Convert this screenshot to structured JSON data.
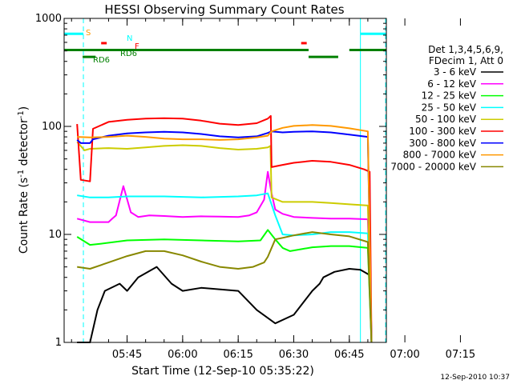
{
  "chart_data": {
    "type": "line",
    "title": "HESSI Observing Summary Count Rates",
    "xlabel": "Start Time (12-Sep-10 05:35:22)",
    "ylabel_main": "Count Rate (s",
    "ylabel_sup1": "-1",
    "ylabel_mid": " detector",
    "ylabel_sup2": "-1",
    "ylabel_end": ")",
    "ylog": true,
    "ylim": [
      1,
      1000
    ],
    "xlim_min": [
      -7,
      80
    ],
    "xticks": [
      {
        "m": 10,
        "label": "05:45"
      },
      {
        "m": 25,
        "label": "06:00"
      },
      {
        "m": 40,
        "label": "06:15"
      },
      {
        "m": 55,
        "label": "06:30"
      },
      {
        "m": 70,
        "label": "06:45"
      },
      {
        "m": 85,
        "label": "07:00"
      },
      {
        "m": 100,
        "label": "07:15"
      }
    ],
    "yticks": [
      {
        "v": 1,
        "label": "1"
      },
      {
        "v": 10,
        "label": "10"
      },
      {
        "v": 100,
        "label": "100"
      },
      {
        "v": 1000,
        "label": "1000"
      }
    ],
    "legend_header": [
      "Det 1,3,4,5,6,9,",
      "FDecim 1, Att 0"
    ],
    "footer_date": "12-Sep-2010 10:37",
    "series": [
      {
        "name": "3 - 6 keV",
        "color": "#000000",
        "points": [
          [
            -3.5,
            1.0
          ],
          [
            0,
            1.0
          ],
          [
            2,
            2.0
          ],
          [
            4,
            3.0
          ],
          [
            8,
            3.5
          ],
          [
            10,
            3.0
          ],
          [
            13,
            4.0
          ],
          [
            18,
            5.0
          ],
          [
            22,
            3.5
          ],
          [
            25,
            3.0
          ],
          [
            30,
            3.2
          ],
          [
            40,
            3.0
          ],
          [
            45,
            2.0
          ],
          [
            50,
            1.5
          ],
          [
            55,
            1.8
          ],
          [
            60,
            3.0
          ],
          [
            62,
            3.5
          ],
          [
            63,
            4.0
          ],
          [
            66,
            4.5
          ],
          [
            70,
            4.8
          ],
          [
            73,
            4.7
          ],
          [
            75.5,
            4.2
          ],
          [
            76,
            1.0
          ]
        ]
      },
      {
        "name": "6 - 12 keV",
        "color": "#ff00ff",
        "points": [
          [
            -3.5,
            14.0
          ],
          [
            0,
            13.0
          ],
          [
            5,
            13.0
          ],
          [
            6,
            14.0
          ],
          [
            7,
            15.0
          ],
          [
            9,
            28.0
          ],
          [
            11,
            16.0
          ],
          [
            13,
            14.5
          ],
          [
            16,
            15.0
          ],
          [
            20,
            14.8
          ],
          [
            25,
            14.5
          ],
          [
            30,
            14.7
          ],
          [
            35,
            14.6
          ],
          [
            40,
            14.5
          ],
          [
            43,
            15.0
          ],
          [
            45,
            16.0
          ],
          [
            47,
            21.0
          ],
          [
            48,
            38.0
          ],
          [
            49,
            24.0
          ],
          [
            50,
            17.0
          ],
          [
            52,
            15.5
          ],
          [
            55,
            14.5
          ],
          [
            60,
            14.2
          ],
          [
            65,
            14.0
          ],
          [
            70,
            14.0
          ],
          [
            75,
            13.8
          ],
          [
            76,
            1.0
          ]
        ]
      },
      {
        "name": "12 - 25 keV",
        "color": "#00ff00",
        "points": [
          [
            -3.5,
            9.5
          ],
          [
            0,
            8.0
          ],
          [
            3,
            8.2
          ],
          [
            10,
            8.8
          ],
          [
            20,
            9.0
          ],
          [
            30,
            8.8
          ],
          [
            40,
            8.6
          ],
          [
            46,
            8.8
          ],
          [
            48,
            11.0
          ],
          [
            50,
            9.0
          ],
          [
            52,
            7.5
          ],
          [
            54,
            7.0
          ],
          [
            57,
            7.3
          ],
          [
            60,
            7.6
          ],
          [
            65,
            7.8
          ],
          [
            70,
            7.8
          ],
          [
            75,
            7.5
          ],
          [
            76,
            1.0
          ]
        ]
      },
      {
        "name": "25 - 50 keV",
        "color": "#00ffff",
        "points": [
          [
            -3.5,
            23.0
          ],
          [
            0,
            22.0
          ],
          [
            5,
            22.0
          ],
          [
            10,
            22.5
          ],
          [
            20,
            22.5
          ],
          [
            30,
            22.0
          ],
          [
            40,
            22.5
          ],
          [
            45,
            23.0
          ],
          [
            48,
            24.0
          ],
          [
            50,
            15.0
          ],
          [
            52,
            10.0
          ],
          [
            55,
            9.8
          ],
          [
            60,
            10.0
          ],
          [
            65,
            10.5
          ],
          [
            70,
            10.5
          ],
          [
            75,
            10.2
          ],
          [
            76,
            1.0
          ]
        ]
      },
      {
        "name": "50 - 100 keV",
        "color": "#cccc00",
        "points": [
          [
            -3.5,
            72.0
          ],
          [
            -1.5,
            60.0
          ],
          [
            0,
            62.0
          ],
          [
            5,
            63.0
          ],
          [
            10,
            62.0
          ],
          [
            15,
            64.0
          ],
          [
            20,
            66.0
          ],
          [
            25,
            67.0
          ],
          [
            30,
            66.0
          ],
          [
            35,
            63.0
          ],
          [
            40,
            61.0
          ],
          [
            45,
            62.0
          ],
          [
            48,
            64.0
          ],
          [
            48.7,
            66.0
          ],
          [
            49,
            22.0
          ],
          [
            52,
            20.0
          ],
          [
            55,
            20.0
          ],
          [
            60,
            20.0
          ],
          [
            65,
            19.5
          ],
          [
            70,
            19.0
          ],
          [
            75,
            18.5
          ],
          [
            76,
            1.0
          ]
        ]
      },
      {
        "name": "100 - 300 keV",
        "color": "#ff0000",
        "points": [
          [
            -3.5,
            105.0
          ],
          [
            -2.5,
            32.0
          ],
          [
            0,
            31.0
          ],
          [
            0.8,
            95.0
          ],
          [
            5,
            110.0
          ],
          [
            10,
            115.0
          ],
          [
            15,
            118.0
          ],
          [
            20,
            119.0
          ],
          [
            25,
            118.0
          ],
          [
            30,
            113.0
          ],
          [
            35,
            106.0
          ],
          [
            40,
            103.0
          ],
          [
            45,
            107.0
          ],
          [
            48,
            118.0
          ],
          [
            48.8,
            125.0
          ],
          [
            49,
            42.0
          ],
          [
            52,
            44.0
          ],
          [
            55,
            46.0
          ],
          [
            60,
            48.0
          ],
          [
            65,
            47.0
          ],
          [
            70,
            44.0
          ],
          [
            74,
            40.0
          ],
          [
            75.5,
            38.0
          ],
          [
            76,
            1.0
          ]
        ]
      },
      {
        "name": "300 - 800 keV",
        "color": "#0000ff",
        "points": [
          [
            -3.5,
            75.0
          ],
          [
            -2.5,
            70.0
          ],
          [
            0,
            70.0
          ],
          [
            0.8,
            76.0
          ],
          [
            5,
            82.0
          ],
          [
            10,
            86.0
          ],
          [
            15,
            88.0
          ],
          [
            20,
            89.0
          ],
          [
            25,
            88.0
          ],
          [
            30,
            85.0
          ],
          [
            35,
            81.0
          ],
          [
            40,
            79.0
          ],
          [
            45,
            81.0
          ],
          [
            48,
            87.0
          ],
          [
            49,
            90.0
          ],
          [
            52,
            88.0
          ],
          [
            55,
            89.0
          ],
          [
            60,
            90.0
          ],
          [
            65,
            88.0
          ],
          [
            70,
            84.0
          ],
          [
            75,
            80.0
          ],
          [
            76,
            1.0
          ]
        ]
      },
      {
        "name": "800 - 7000 keV",
        "color": "#ff9900",
        "points": [
          [
            -3.5,
            80.0
          ],
          [
            0,
            79.0
          ],
          [
            5,
            80.0
          ],
          [
            10,
            82.0
          ],
          [
            15,
            80.0
          ],
          [
            20,
            77.0
          ],
          [
            25,
            76.0
          ],
          [
            30,
            76.0
          ],
          [
            35,
            75.0
          ],
          [
            40,
            76.0
          ],
          [
            45,
            79.0
          ],
          [
            48,
            82.0
          ],
          [
            49,
            90.0
          ],
          [
            52,
            97.0
          ],
          [
            55,
            101.0
          ],
          [
            60,
            103.0
          ],
          [
            65,
            101.0
          ],
          [
            70,
            96.0
          ],
          [
            75,
            90.0
          ],
          [
            76,
            1.0
          ]
        ]
      },
      {
        "name": "7000 - 20000 keV",
        "color": "#888800",
        "points": [
          [
            -3.5,
            5.0
          ],
          [
            0,
            4.8
          ],
          [
            5,
            5.5
          ],
          [
            10,
            6.3
          ],
          [
            15,
            7.0
          ],
          [
            20,
            7.0
          ],
          [
            25,
            6.4
          ],
          [
            30,
            5.6
          ],
          [
            35,
            5.0
          ],
          [
            40,
            4.8
          ],
          [
            44,
            5.0
          ],
          [
            47,
            5.5
          ],
          [
            48,
            6.2
          ],
          [
            50,
            9.0
          ],
          [
            52,
            9.3
          ],
          [
            55,
            9.8
          ],
          [
            60,
            10.5
          ],
          [
            65,
            10.0
          ],
          [
            70,
            9.6
          ],
          [
            75,
            8.5
          ],
          [
            76,
            1.0
          ]
        ]
      }
    ],
    "vertical_markers": [
      {
        "m": -9.5,
        "color": "#ff9900",
        "dash": true
      },
      {
        "m": -1.8,
        "color": "#00ffff",
        "dash": true
      },
      {
        "m": 79.8,
        "color": "#00ffff",
        "dash": true
      },
      {
        "m": 73.0,
        "color": "#00ffff",
        "dash": false
      }
    ],
    "flag_bars": [
      {
        "label": "S",
        "color": "#ff9900",
        "value": 930,
        "segments": [
          [
            -15,
            -10
          ]
        ]
      },
      {
        "label": "N",
        "color": "#00ffff",
        "value": 720,
        "segments": [
          [
            -15,
            -1.8
          ],
          [
            73,
            89
          ]
        ]
      },
      {
        "label": "F",
        "color": "#ff0000",
        "value": 590,
        "segments": [
          [
            3,
            4.5
          ],
          [
            57,
            58.5
          ]
        ]
      },
      {
        "label": "RD6",
        "color": "#008000",
        "value": 510,
        "segments": [
          [
            -15,
            59
          ],
          [
            70,
            89
          ]
        ]
      },
      {
        "label": "RD6",
        "color": "#008000",
        "value": 440,
        "segments": [
          [
            -2,
            1.5
          ],
          [
            59,
            67
          ]
        ]
      }
    ]
  }
}
